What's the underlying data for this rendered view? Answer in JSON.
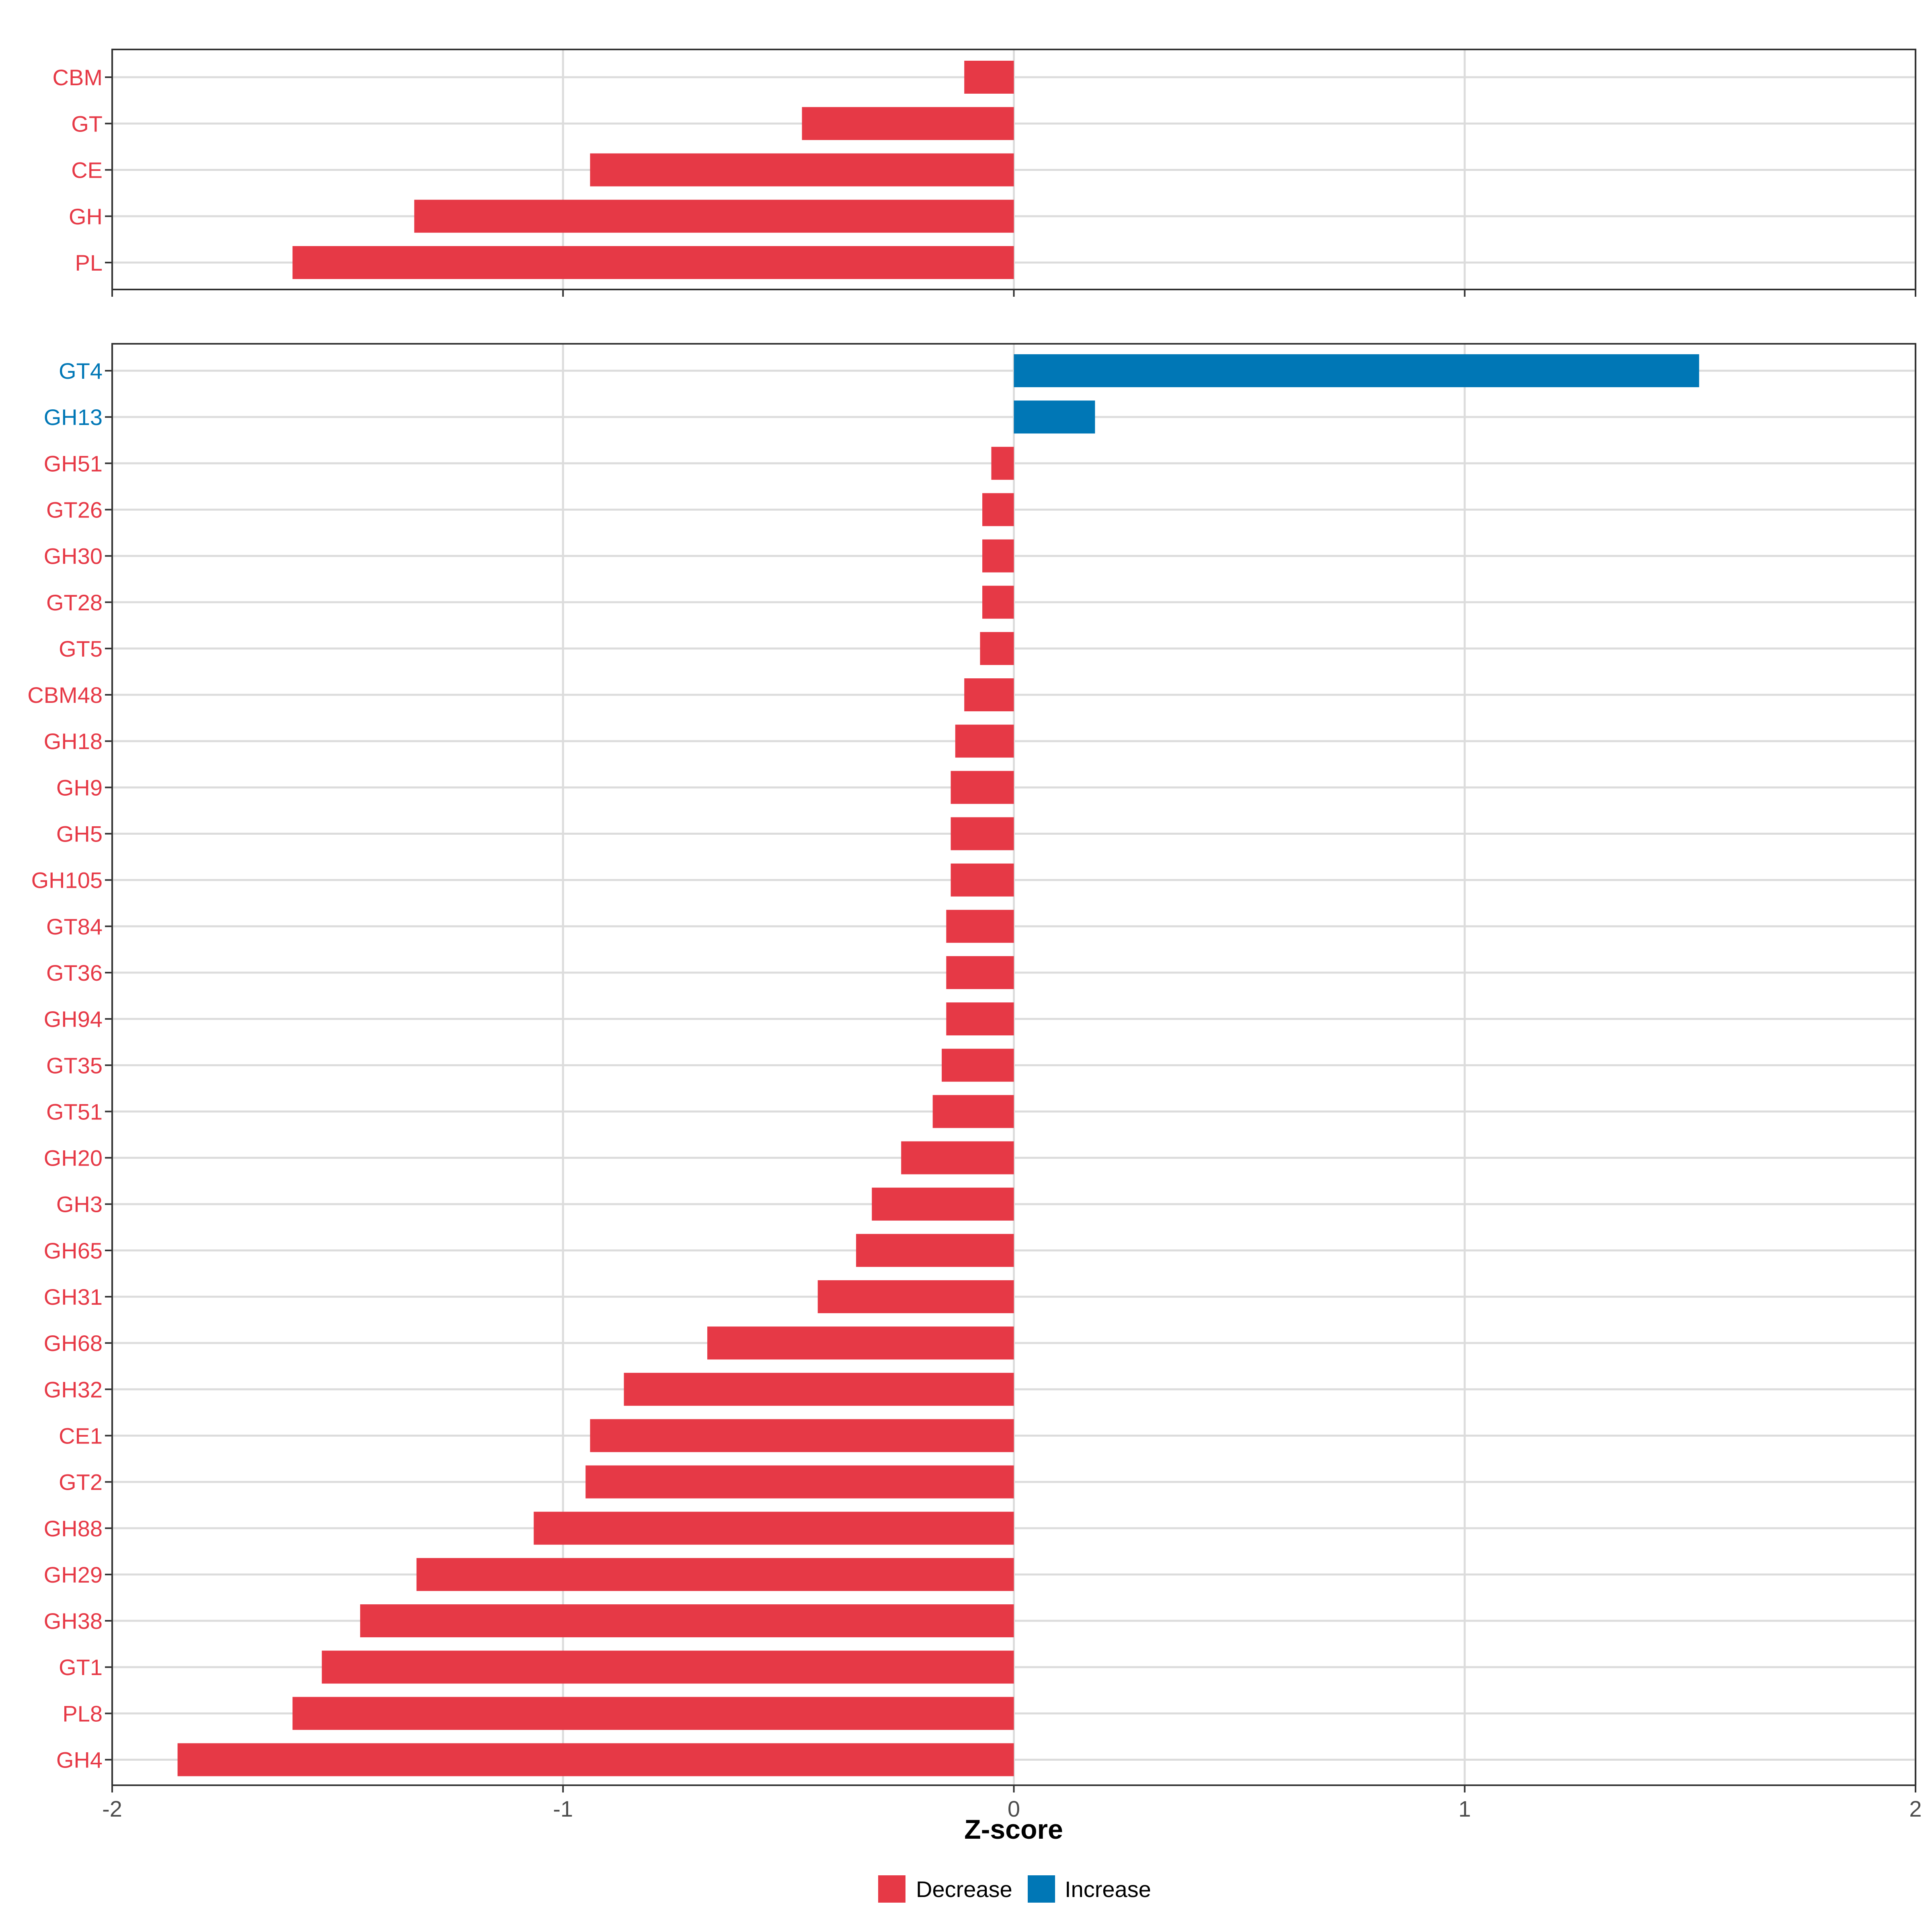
{
  "colors": {
    "decrease": "#E63946",
    "increase": "#0077B6",
    "grid": "#DCDCDC",
    "panel_border": "#333333",
    "axis_text": "#4D4D4D"
  },
  "chart_data": {
    "type": "bar",
    "orientation": "horizontal",
    "xlabel": "Z-score",
    "xlim": [
      -2,
      2
    ],
    "xticks": [
      -2,
      -1,
      0,
      1,
      2
    ],
    "xtick_labels": [
      "-2",
      "-1",
      "0",
      "1",
      "2"
    ],
    "grid": true,
    "legend": {
      "position": "bottom",
      "entries": [
        {
          "label": "Decrease",
          "status": "decrease"
        },
        {
          "label": "Increase",
          "status": "increase"
        }
      ]
    },
    "panels": [
      {
        "name": "families",
        "categories": [
          "CBM",
          "GT",
          "CE",
          "GH",
          "PL"
        ],
        "values": [
          -0.11,
          -0.47,
          -0.94,
          -1.33,
          -1.6
        ],
        "status": [
          "decrease",
          "decrease",
          "decrease",
          "decrease",
          "decrease"
        ]
      },
      {
        "name": "subfamilies",
        "categories": [
          "GT4",
          "GH13",
          "GH51",
          "GT26",
          "GH30",
          "GT28",
          "GT5",
          "CBM48",
          "GH18",
          "GH9",
          "GH5",
          "GH105",
          "GT84",
          "GT36",
          "GH94",
          "GT35",
          "GT51",
          "GH20",
          "GH3",
          "GH65",
          "GH31",
          "GH68",
          "GH32",
          "CE1",
          "GT2",
          "GH88",
          "GH29",
          "GH38",
          "GT1",
          "PL8",
          "GH4"
        ],
        "values": [
          1.52,
          0.18,
          -0.05,
          -0.07,
          -0.07,
          -0.07,
          -0.075,
          -0.11,
          -0.13,
          -0.14,
          -0.14,
          -0.14,
          -0.15,
          -0.15,
          -0.15,
          -0.16,
          -0.18,
          -0.25,
          -0.315,
          -0.35,
          -0.435,
          -0.68,
          -0.865,
          -0.94,
          -0.95,
          -1.065,
          -1.325,
          -1.45,
          -1.535,
          -1.6,
          -1.855
        ],
        "status": [
          "increase",
          "increase",
          "decrease",
          "decrease",
          "decrease",
          "decrease",
          "decrease",
          "decrease",
          "decrease",
          "decrease",
          "decrease",
          "decrease",
          "decrease",
          "decrease",
          "decrease",
          "decrease",
          "decrease",
          "decrease",
          "decrease",
          "decrease",
          "decrease",
          "decrease",
          "decrease",
          "decrease",
          "decrease",
          "decrease",
          "decrease",
          "decrease",
          "decrease",
          "decrease",
          "decrease"
        ]
      }
    ]
  }
}
